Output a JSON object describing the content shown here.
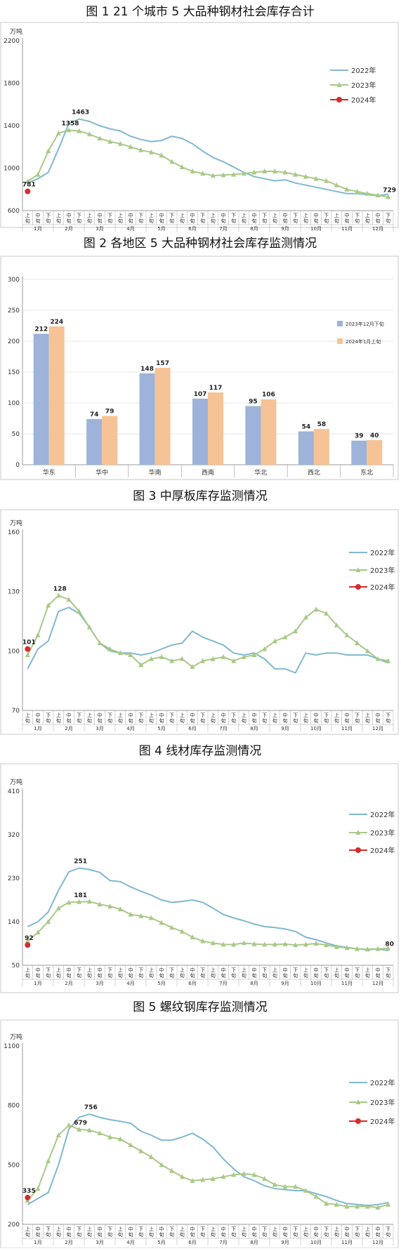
{
  "colors": {
    "c2022": "#7fb8d1",
    "c2023": "#a9c987",
    "c2024": "#d62b2b",
    "barA": "#9db3d9",
    "barB": "#f5c396",
    "grid": "#cfcfcf"
  },
  "chart_data": [
    {
      "type": "line",
      "title": "图 1 21 个城市 5 大品种钢材社会库存合计",
      "unit": "万吨",
      "ylim": [
        600,
        2200
      ],
      "yticks": [
        600,
        1000,
        1400,
        1800,
        2200
      ],
      "month_labels": [
        "1月",
        "2月",
        "3月",
        "4月",
        "5月",
        "6月",
        "7月",
        "8月",
        "9月",
        "10月",
        "11月",
        "12月"
      ],
      "sub_labels": [
        "上旬",
        "中旬",
        "下旬"
      ],
      "series": [
        {
          "name": "2022年",
          "values": [
            860,
            900,
            960,
            1180,
            1420,
            1463,
            1440,
            1400,
            1370,
            1350,
            1300,
            1270,
            1250,
            1260,
            1300,
            1280,
            1230,
            1160,
            1100,
            1060,
            1010,
            960,
            920,
            900,
            880,
            890,
            860,
            840,
            820,
            800,
            780,
            760,
            760,
            750,
            740,
            755
          ]
        },
        {
          "name": "2023年",
          "values": [
            875,
            940,
            1160,
            1330,
            1358,
            1350,
            1320,
            1280,
            1250,
            1230,
            1200,
            1170,
            1150,
            1120,
            1060,
            1010,
            970,
            950,
            930,
            935,
            940,
            950,
            960,
            970,
            970,
            960,
            940,
            920,
            900,
            880,
            840,
            800,
            780,
            760,
            745,
            729
          ]
        },
        {
          "name": "2024年",
          "values": [
            781
          ]
        }
      ],
      "annotations": [
        {
          "label": "1463",
          "index": 5,
          "series": "2022年"
        },
        {
          "label": "1358",
          "index": 4,
          "series": "2023年"
        },
        {
          "label": "781",
          "index": 0,
          "series": "2024年"
        },
        {
          "label": "729",
          "index": 35,
          "series": "2023年"
        }
      ]
    },
    {
      "type": "bar",
      "title": "图 2 各地区 5 大品种钢材社会库存监测情况",
      "ylim": [
        0,
        300
      ],
      "yticks": [
        0,
        50,
        100,
        150,
        200,
        250,
        300
      ],
      "categories": [
        "华东",
        "华中",
        "华南",
        "西南",
        "华北",
        "西北",
        "东北"
      ],
      "series": [
        {
          "name": "2023年12月下旬",
          "values": [
            212,
            74,
            148,
            107,
            95,
            54,
            39
          ]
        },
        {
          "name": "2024年1月上旬",
          "values": [
            224,
            79,
            157,
            117,
            106,
            58,
            40
          ]
        }
      ]
    },
    {
      "type": "line",
      "title": "图 3 中厚板库存监测情况",
      "unit": "万吨",
      "ylim": [
        70,
        160
      ],
      "yticks": [
        70,
        100,
        130,
        160
      ],
      "month_labels": [
        "1月",
        "2月",
        "3月",
        "4月",
        "5月",
        "6月",
        "7月",
        "8月",
        "9月",
        "10月",
        "11月",
        "12月"
      ],
      "sub_labels": [
        "上旬",
        "中旬",
        "下旬"
      ],
      "series": [
        {
          "name": "2022年",
          "values": [
            91,
            101,
            105,
            120,
            122,
            119,
            112,
            104,
            100,
            99,
            99,
            98,
            99,
            101,
            103,
            104,
            110,
            107,
            105,
            103,
            99,
            98,
            99,
            96,
            91,
            91,
            89,
            99,
            98,
            99,
            99,
            98,
            98,
            98,
            96,
            94
          ]
        },
        {
          "name": "2023年",
          "values": [
            98,
            108,
            123,
            128,
            126,
            120,
            112,
            104,
            101,
            99,
            98,
            93,
            96,
            97,
            95,
            96,
            92,
            95,
            96,
            97,
            95,
            97,
            98,
            101,
            105,
            107,
            110,
            117,
            121,
            119,
            113,
            108,
            104,
            100,
            96,
            95
          ]
        },
        {
          "name": "2024年",
          "values": [
            101
          ]
        }
      ],
      "annotations": [
        {
          "label": "128",
          "index": 3,
          "series": "2023年"
        },
        {
          "label": "101",
          "index": 0,
          "series": "2024年"
        }
      ]
    },
    {
      "type": "line",
      "title": "图 4 线材库存监测情况",
      "unit": "万吨",
      "ylim": [
        50,
        410
      ],
      "yticks": [
        50,
        140,
        230,
        320,
        410
      ],
      "month_labels": [
        "1月",
        "2月",
        "3月",
        "4月",
        "5月",
        "6月",
        "7月",
        "8月",
        "9月",
        "10月",
        "11月",
        "12月"
      ],
      "sub_labels": [
        "上旬",
        "中旬",
        "下旬"
      ],
      "series": [
        {
          "name": "2022年",
          "values": [
            130,
            140,
            160,
            205,
            243,
            251,
            248,
            242,
            225,
            223,
            212,
            203,
            195,
            185,
            180,
            182,
            185,
            180,
            168,
            155,
            148,
            142,
            135,
            130,
            128,
            125,
            120,
            108,
            103,
            96,
            90,
            87,
            84,
            82,
            84,
            80
          ]
        },
        {
          "name": "2023年",
          "values": [
            100,
            118,
            140,
            168,
            180,
            181,
            182,
            176,
            172,
            166,
            155,
            152,
            148,
            138,
            128,
            120,
            108,
            100,
            96,
            93,
            93,
            96,
            94,
            93,
            93,
            94,
            92,
            93,
            95,
            92,
            88,
            86,
            84,
            83,
            84,
            85
          ]
        },
        {
          "name": "2024年",
          "values": [
            92
          ]
        }
      ],
      "annotations": [
        {
          "label": "251",
          "index": 5,
          "series": "2022年"
        },
        {
          "label": "181",
          "index": 5,
          "series": "2023年"
        },
        {
          "label": "92",
          "index": 0,
          "series": "2024年"
        },
        {
          "label": "80",
          "index": 35,
          "series": "2022年"
        }
      ]
    },
    {
      "type": "line",
      "title": "图 5 螺纹钢库存监测情况",
      "unit": "万吨",
      "ylim": [
        200,
        1100
      ],
      "yticks": [
        200,
        500,
        800,
        1100
      ],
      "month_labels": [
        "1月",
        "2月",
        "3月",
        "4月",
        "5月",
        "6月",
        "7月",
        "8月",
        "9月",
        "10月",
        "11月",
        "12月"
      ],
      "sub_labels": [
        "上旬",
        "中旬",
        "下旬"
      ],
      "series": [
        {
          "name": "2022年",
          "values": [
            300,
            330,
            360,
            500,
            680,
            740,
            756,
            740,
            728,
            720,
            710,
            670,
            650,
            625,
            625,
            640,
            660,
            630,
            590,
            530,
            480,
            440,
            420,
            395,
            380,
            375,
            370,
            370,
            355,
            340,
            320,
            305,
            300,
            295,
            300,
            310
          ]
        },
        {
          "name": "2023年",
          "values": [
            320,
            380,
            520,
            650,
            700,
            679,
            675,
            660,
            640,
            630,
            600,
            570,
            540,
            500,
            470,
            440,
            420,
            425,
            430,
            440,
            450,
            455,
            450,
            430,
            400,
            390,
            390,
            370,
            340,
            305,
            300,
            290,
            290,
            290,
            285,
            300
          ]
        },
        {
          "name": "2024年",
          "values": [
            335
          ]
        }
      ],
      "annotations": [
        {
          "label": "756",
          "index": 6,
          "series": "2022年"
        },
        {
          "label": "679",
          "index": 5,
          "series": "2023年"
        },
        {
          "label": "335",
          "index": 0,
          "series": "2024年"
        }
      ]
    }
  ]
}
